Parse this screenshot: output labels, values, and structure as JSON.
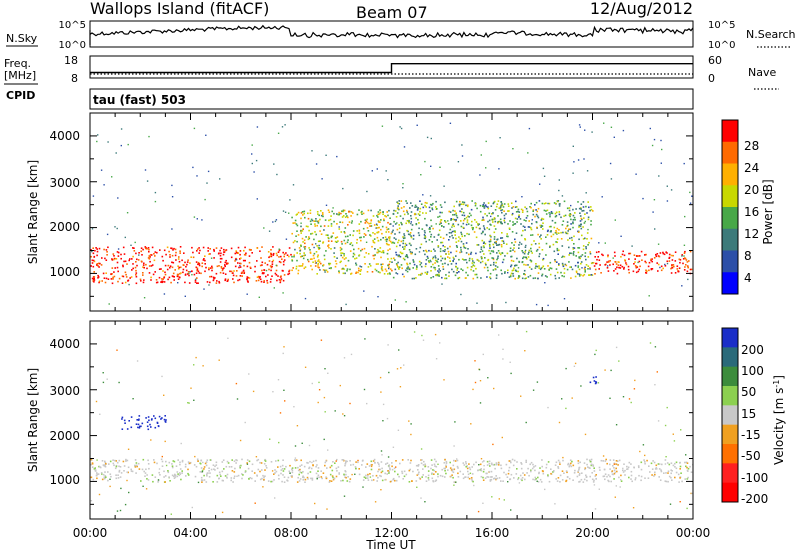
{
  "header": {
    "station": "Wallops Island (fitACF)",
    "beam": "Beam 07",
    "date": "12/Aug/2012"
  },
  "noise_panel": {
    "left_label": "N.Sky",
    "right_label": "N.Search",
    "left_ticks": [
      "10^5",
      "10^0"
    ],
    "right_ticks": [
      "10^5",
      "10^0"
    ]
  },
  "freq_panel": {
    "left_label_1": "Freq.",
    "left_label_2": "[MHz]",
    "cpid_label": "CPID",
    "left_ticks": [
      "18",
      "8"
    ],
    "right_label": "Nave",
    "right_ticks": [
      "60",
      "0"
    ],
    "cpid_text": "tau (fast) 503"
  },
  "power_panel": {
    "ylabel": "Slant Range [km]",
    "yticks": [
      "4000",
      "3000",
      "2000",
      "1000"
    ],
    "colorbar_label": "Power [dB]",
    "colorbar_ticks": [
      "28",
      "24",
      "20",
      "16",
      "12",
      "8",
      "4"
    ],
    "colorbar_colors": [
      "#ff0000",
      "#ff6a00",
      "#ffb000",
      "#c8d800",
      "#48a848",
      "#3c7a7a",
      "#2c4fa8",
      "#0000ff"
    ]
  },
  "velocity_panel": {
    "ylabel": "Slant Range [km]",
    "yticks": [
      "4000",
      "3000",
      "2000",
      "1000"
    ],
    "colorbar_label": "Velocity [m s",
    "colorbar_label_sup": "-1",
    "colorbar_label_end": "]",
    "colorbar_ticks": [
      "200",
      "100",
      "50",
      "15",
      "-15",
      "-50",
      "-100",
      "-200"
    ],
    "colorbar_colors": [
      "#1a2ec8",
      "#2a6a7a",
      "#3c8c3c",
      "#8cd050",
      "#c8c8c8",
      "#f0a020",
      "#ff7000",
      "#ff2020",
      "#ff0000"
    ]
  },
  "x_axis": {
    "label": "Time UT",
    "ticks": [
      "00:00",
      "04:00",
      "08:00",
      "12:00",
      "16:00",
      "20:00",
      "00:00"
    ]
  },
  "chart_data": {
    "type": "heatmap",
    "title": "Wallops Island (fitACF) Beam 07 12/Aug/2012",
    "xlabel": "Time UT",
    "x_range_hours": [
      0,
      24
    ],
    "ylabel": "Slant Range [km]",
    "ylim": [
      180,
      4500
    ],
    "freq_mhz": {
      "before_12ut": 10.5,
      "after_12ut": 14.5
    },
    "panels": [
      {
        "name": "Power [dB]",
        "colorbar_range": [
          0,
          32
        ],
        "echo_bands": [
          {
            "hours": [
              0,
              8
            ],
            "range_km": [
              800,
              1600
            ],
            "power_db": 28
          },
          {
            "hours": [
              8,
              12
            ],
            "range_km": [
              1000,
              2400
            ],
            "power_db": 16
          },
          {
            "hours": [
              12,
              20
            ],
            "range_km": [
              900,
              2600
            ],
            "power_db": 12
          },
          {
            "hours": [
              20,
              24
            ],
            "range_km": [
              1000,
              1500
            ],
            "power_db": 28
          }
        ]
      },
      {
        "name": "Velocity [m s-1]",
        "colorbar_range": [
          -250,
          250
        ],
        "echo_bands": [
          {
            "hours": [
              1.2,
              3.0
            ],
            "range_km": [
              2150,
              2450
            ],
            "velocity_ms": 200
          },
          {
            "hours": [
              0,
              24
            ],
            "range_km": [
              1000,
              1500
            ],
            "velocity_ms": 0
          },
          {
            "hours": [
              19.8,
              20.2
            ],
            "range_km": [
              3150,
              3350
            ],
            "velocity_ms": 200
          }
        ]
      }
    ]
  }
}
